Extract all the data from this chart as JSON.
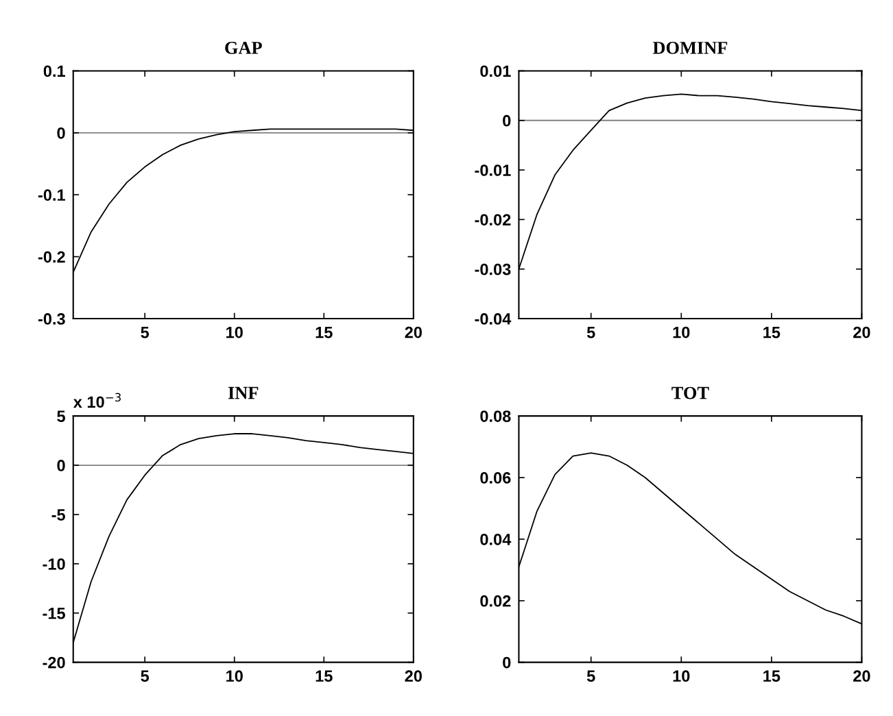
{
  "chart_data": [
    {
      "type": "line",
      "title": "GAP",
      "x": [
        1,
        2,
        3,
        4,
        5,
        6,
        7,
        8,
        9,
        10,
        11,
        12,
        13,
        14,
        15,
        16,
        17,
        18,
        19,
        20
      ],
      "series": [
        {
          "color": "#000000",
          "values": [
            -0.225,
            -0.16,
            -0.115,
            -0.08,
            -0.055,
            -0.035,
            -0.02,
            -0.01,
            -0.003,
            0.002,
            0.004,
            0.006,
            0.006,
            0.006,
            0.006,
            0.006,
            0.006,
            0.006,
            0.006,
            0.004
          ]
        }
      ],
      "xlim": [
        1,
        20
      ],
      "xticks": [
        5,
        10,
        15,
        20
      ],
      "ylim": [
        -0.3,
        0.1
      ],
      "yticks": [
        -0.3,
        -0.2,
        -0.1,
        0,
        0.1
      ],
      "ref_lines": [
        {
          "axis": "y",
          "value": 0,
          "color": "#808080"
        }
      ]
    },
    {
      "type": "line",
      "title": "DOMINF",
      "x": [
        1,
        2,
        3,
        4,
        5,
        6,
        7,
        8,
        9,
        10,
        11,
        12,
        13,
        14,
        15,
        16,
        17,
        18,
        19,
        20
      ],
      "series": [
        {
          "color": "#000000",
          "values": [
            -0.03,
            -0.019,
            -0.011,
            -0.006,
            -0.002,
            0.002,
            0.0035,
            0.0045,
            0.005,
            0.0053,
            0.005,
            0.005,
            0.0047,
            0.0043,
            0.0038,
            0.0034,
            0.003,
            0.0027,
            0.0024,
            0.002
          ]
        }
      ],
      "xlim": [
        1,
        20
      ],
      "xticks": [
        5,
        10,
        15,
        20
      ],
      "ylim": [
        -0.04,
        0.01
      ],
      "yticks": [
        -0.04,
        -0.03,
        -0.02,
        -0.01,
        0,
        0.01
      ],
      "ref_lines": [
        {
          "axis": "y",
          "value": 0,
          "color": "#808080"
        }
      ]
    },
    {
      "type": "line",
      "title": "INF",
      "annotations": [
        "x 10$^{−3}$"
      ],
      "x": [
        1,
        2,
        3,
        4,
        5,
        6,
        7,
        8,
        9,
        10,
        11,
        12,
        13,
        14,
        15,
        16,
        17,
        18,
        19,
        20
      ],
      "series": [
        {
          "color": "#000000",
          "values": [
            -18,
            -11.8,
            -7.2,
            -3.5,
            -1,
            1,
            2.1,
            2.7,
            3.0,
            3.2,
            3.2,
            3.0,
            2.8,
            2.5,
            2.3,
            2.1,
            1.8,
            1.6,
            1.4,
            1.2
          ]
        }
      ],
      "xlim": [
        1,
        20
      ],
      "xticks": [
        5,
        10,
        15,
        20
      ],
      "ylim": [
        -20,
        5
      ],
      "yticks": [
        -20,
        -15,
        -10,
        -5,
        0,
        5
      ],
      "ref_lines": [
        {
          "axis": "y",
          "value": 0,
          "color": "#808080"
        }
      ]
    },
    {
      "type": "line",
      "title": "TOT",
      "x": [
        1,
        2,
        3,
        4,
        5,
        6,
        7,
        8,
        9,
        10,
        11,
        12,
        13,
        14,
        15,
        16,
        17,
        18,
        19,
        20
      ],
      "series": [
        {
          "color": "#000000",
          "values": [
            0.031,
            0.049,
            0.061,
            0.067,
            0.068,
            0.067,
            0.064,
            0.06,
            0.055,
            0.05,
            0.045,
            0.04,
            0.035,
            0.031,
            0.027,
            0.023,
            0.02,
            0.017,
            0.015,
            0.0125
          ]
        }
      ],
      "xlim": [
        1,
        20
      ],
      "xticks": [
        5,
        10,
        15,
        20
      ],
      "ylim": [
        0,
        0.08
      ],
      "yticks": [
        0,
        0.02,
        0.04,
        0.06,
        0.08
      ]
    }
  ]
}
